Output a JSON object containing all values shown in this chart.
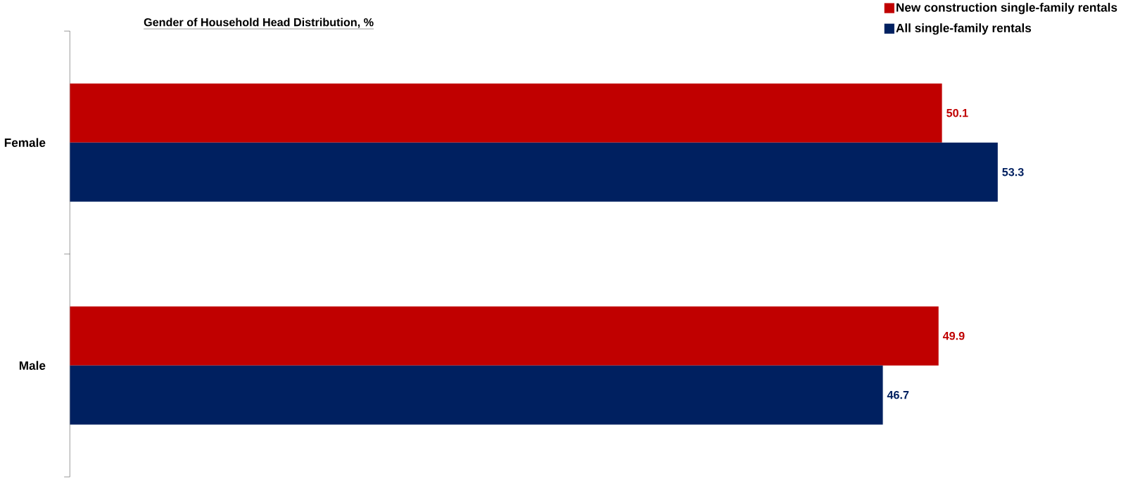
{
  "chart_data": {
    "type": "bar",
    "orientation": "horizontal",
    "title": "Gender of Household Head Distribution, %",
    "categories": [
      "Female",
      "Male"
    ],
    "series": [
      {
        "name": "New construction single-family rentals",
        "color": "#c00000",
        "values": [
          50.1,
          49.9
        ]
      },
      {
        "name": "All single-family rentals",
        "color": "#002060",
        "values": [
          53.3,
          46.7
        ]
      }
    ],
    "data_labels": true,
    "legend": "top right"
  }
}
